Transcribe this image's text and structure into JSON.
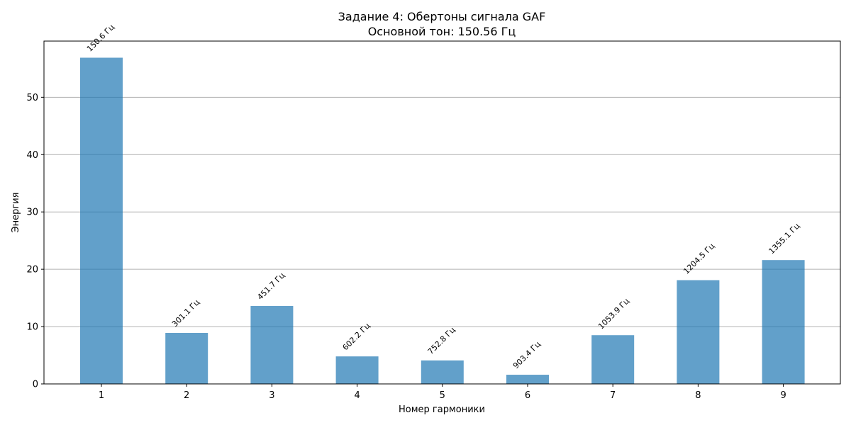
{
  "chart_data": {
    "type": "bar",
    "title": "Задание 4: Обертоны сигнала GAF",
    "subtitle": "Основной тон: 150.56 Гц",
    "xlabel": "Номер гармоники",
    "ylabel": "Энергия",
    "categories": [
      "1",
      "2",
      "3",
      "4",
      "5",
      "6",
      "7",
      "8",
      "9"
    ],
    "values": [
      56.9,
      8.9,
      13.6,
      4.8,
      4.1,
      1.6,
      8.5,
      18.1,
      21.6
    ],
    "bar_labels": [
      "150.6 Гц",
      "301.1 Гц",
      "451.7 Гц",
      "602.2 Гц",
      "752.8 Гц",
      "903.4 Гц",
      "1053.9 Гц",
      "1204.5 Гц",
      "1355.1 Гц"
    ],
    "ylim": [
      0,
      59.8
    ],
    "yticks": [
      0,
      10,
      20,
      30,
      40,
      50
    ],
    "grid": "y",
    "bar_color": "#1f77b4",
    "bar_opacity": 0.7
  }
}
